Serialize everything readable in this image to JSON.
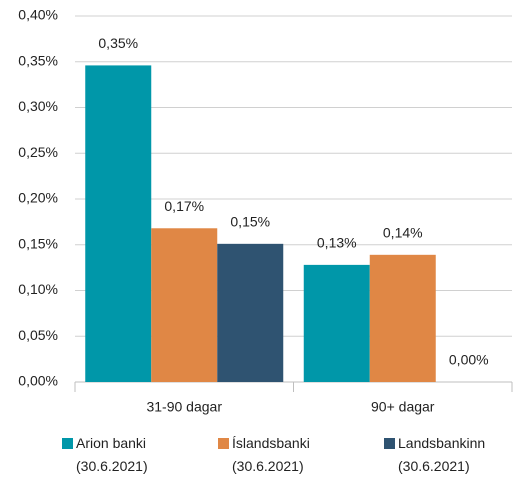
{
  "chart_data": {
    "type": "bar",
    "categories": [
      "31-90 dagar",
      "90+ dagar"
    ],
    "series": [
      {
        "name": "Arion banki (30.6.2021)",
        "color": "#0097a9",
        "values": [
          0.346,
          0.128
        ],
        "value_labels": [
          "0,35%",
          "0,13%"
        ]
      },
      {
        "name": "Íslandsbanki (30.6.2021)",
        "color": "#e08745",
        "values": [
          0.168,
          0.139
        ],
        "value_labels": [
          "0,17%",
          "0,14%"
        ]
      },
      {
        "name": "Landsbankinn (30.6.2021)",
        "color": "#2f5371",
        "values": [
          0.151,
          0
        ],
        "value_labels": [
          "0,15%",
          "0,00%"
        ]
      }
    ],
    "ylim": [
      0,
      0.4
    ],
    "yticks": [
      {
        "value": 0,
        "label": "0,00%"
      },
      {
        "value": 0.05,
        "label": "0,05%"
      },
      {
        "value": 0.1,
        "label": "0,10%"
      },
      {
        "value": 0.15,
        "label": "0,15%"
      },
      {
        "value": 0.2,
        "label": "0,20%"
      },
      {
        "value": 0.25,
        "label": "0,25%"
      },
      {
        "value": 0.3,
        "label": "0,30%"
      },
      {
        "value": 0.35,
        "label": "0,35%"
      },
      {
        "value": 0.4,
        "label": "0,40%"
      }
    ],
    "grid": true
  }
}
